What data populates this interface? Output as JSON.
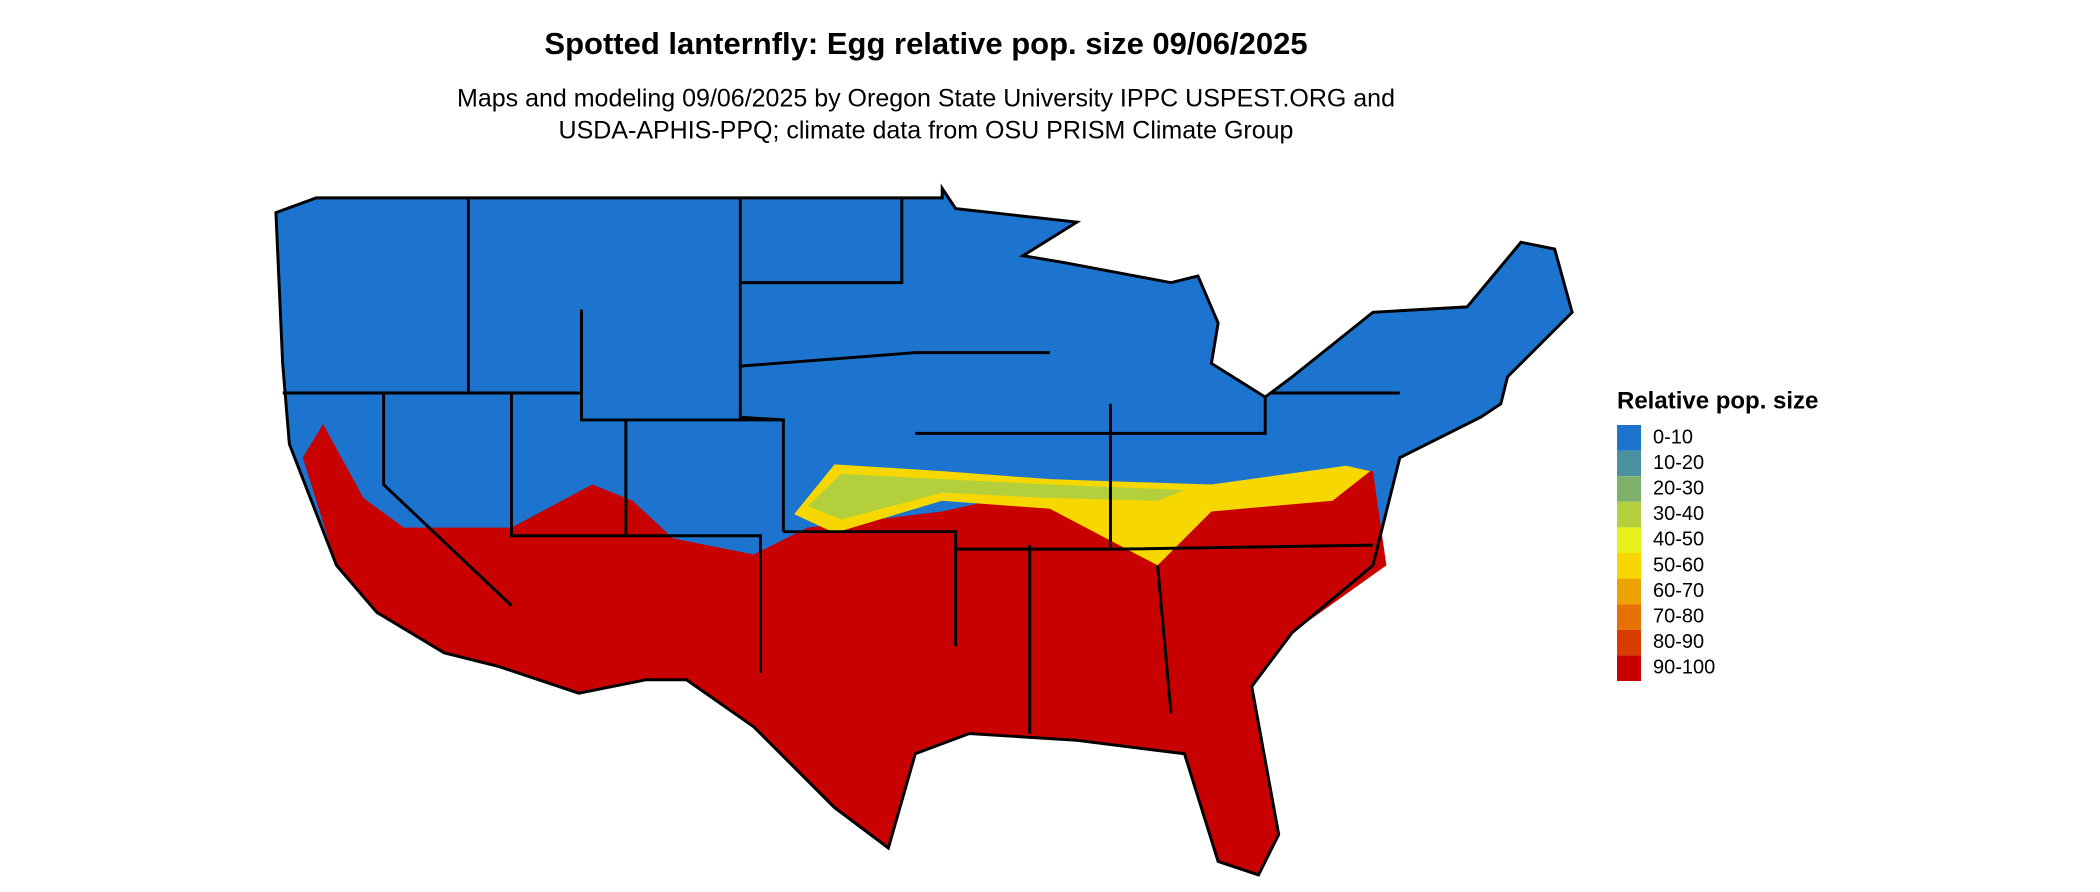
{
  "header": {
    "title": "Spotted lanternfly: Egg relative pop. size 09/06/2025",
    "subtitle": [
      "Maps and modeling 09/06/2025 by Oregon State University IPPC USPEST.ORG and",
      "USDA-APHIS-PPQ; climate data from OSU PRISM Climate Group"
    ]
  },
  "legend": {
    "title": "Relative pop. size",
    "items": [
      {
        "label": "0-10",
        "color": "#1c74cf"
      },
      {
        "label": "10-20",
        "color": "#4a92a0"
      },
      {
        "label": "20-30",
        "color": "#7fb06c"
      },
      {
        "label": "30-40",
        "color": "#b3d03c"
      },
      {
        "label": "40-50",
        "color": "#e6f01a"
      },
      {
        "label": "50-60",
        "color": "#f6d800"
      },
      {
        "label": "60-70",
        "color": "#eda400"
      },
      {
        "label": "70-80",
        "color": "#e67000"
      },
      {
        "label": "80-90",
        "color": "#d93c00"
      },
      {
        "label": "90-100",
        "color": "#c80000"
      }
    ]
  }
}
